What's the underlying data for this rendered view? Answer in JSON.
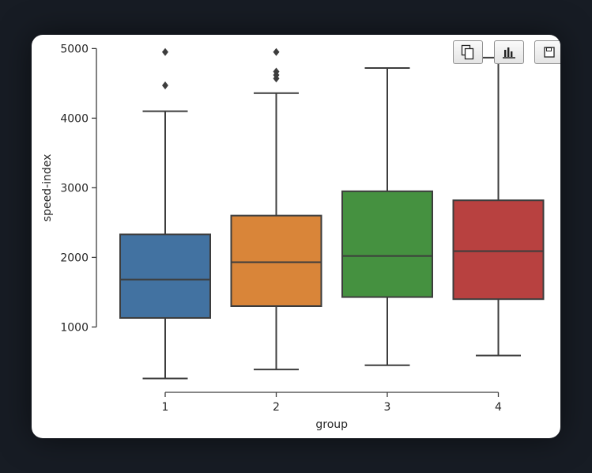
{
  "toolbar": {
    "buttons": [
      {
        "name": "copy-button",
        "icon": "copy-icon"
      },
      {
        "name": "chart-button",
        "icon": "bar-chart-icon"
      },
      {
        "name": "save-button",
        "icon": "save-icon"
      }
    ]
  },
  "chart_data": {
    "type": "box",
    "xlabel": "group",
    "ylabel": "speed-index",
    "categories": [
      "1",
      "2",
      "3",
      "4"
    ],
    "yticks": [
      1000,
      2000,
      3000,
      4000,
      5000
    ],
    "ylim": [
      -200,
      5050
    ],
    "colors": [
      "#4272a1",
      "#d98539",
      "#459140",
      "#b84140"
    ],
    "boxes": [
      {
        "category": "1",
        "whisker_low": 260,
        "q1": 1130,
        "median": 1680,
        "q3": 2330,
        "whisker_high": 4100,
        "outliers": [
          4470,
          4950
        ]
      },
      {
        "category": "2",
        "whisker_low": 390,
        "q1": 1300,
        "median": 1930,
        "q3": 2600,
        "whisker_high": 4360,
        "outliers": [
          4570,
          4620,
          4670,
          4950
        ]
      },
      {
        "category": "3",
        "whisker_low": 450,
        "q1": 1430,
        "median": 2020,
        "q3": 2950,
        "whisker_high": 4720,
        "outliers": []
      },
      {
        "category": "4",
        "whisker_low": 590,
        "q1": 1400,
        "median": 2090,
        "q3": 2820,
        "whisker_high": 4870,
        "outliers": []
      }
    ],
    "grid": false,
    "legend": "none"
  }
}
